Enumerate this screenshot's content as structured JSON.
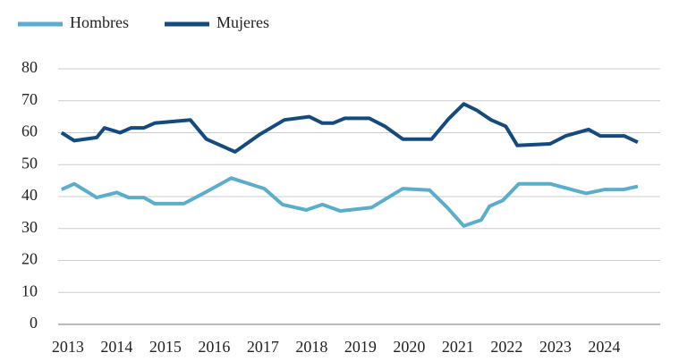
{
  "chart_data": {
    "type": "line",
    "series": [
      {
        "name": "Hombres",
        "color": "#5aaecb",
        "x": [
          2012.87,
          2013.13,
          2013.59,
          2014.0,
          2014.25,
          2014.56,
          2014.78,
          2015.38,
          2015.84,
          2016.35,
          2017.03,
          2017.4,
          2017.89,
          2018.22,
          2018.59,
          2019.23,
          2019.87,
          2020.42,
          2020.78,
          2021.12,
          2021.48,
          2021.65,
          2021.92,
          2022.25,
          2022.89,
          2023.63,
          2024.01,
          2024.4,
          2024.69
        ],
        "values": [
          42.2,
          44,
          39.7,
          41.3,
          39.7,
          39.7,
          37.8,
          37.8,
          41.5,
          45.8,
          42.5,
          37.5,
          35.8,
          37.5,
          35.5,
          36.6,
          42.5,
          42,
          36.6,
          30.8,
          32.7,
          37,
          38.8,
          44,
          44,
          41,
          42.2,
          42.2,
          43.2
        ]
      },
      {
        "name": "Mujeres",
        "color": "#154a7f",
        "x": [
          2012.87,
          2013.13,
          2013.59,
          2013.75,
          2014.07,
          2014.3,
          2014.56,
          2014.78,
          2015.51,
          2015.84,
          2016.43,
          2016.94,
          2017.44,
          2017.95,
          2018.22,
          2018.44,
          2018.68,
          2019.18,
          2019.5,
          2019.87,
          2020.46,
          2020.82,
          2021.12,
          2021.39,
          2021.68,
          2021.98,
          2022.22,
          2022.89,
          2023.21,
          2023.68,
          2023.92,
          2024.41,
          2024.69
        ],
        "values": [
          60,
          57.5,
          58.5,
          61.5,
          60,
          61.5,
          61.5,
          63,
          64,
          58,
          54,
          59.5,
          64,
          65,
          63,
          63,
          64.5,
          64.5,
          62,
          58,
          58,
          64.5,
          69,
          67,
          64,
          62,
          56,
          56.5,
          59,
          61,
          59,
          59,
          57
        ]
      }
    ],
    "xlim": [
      2012.8,
      2025.15
    ],
    "xticks": [
      2013,
      2014,
      2015,
      2016,
      2017,
      2018,
      2019,
      2020,
      2021,
      2022,
      2023,
      2024
    ],
    "ylim": [
      0,
      80
    ],
    "yticks": [
      0,
      10,
      20,
      30,
      40,
      50,
      60,
      70,
      80
    ],
    "grid": true,
    "legend": "top-left"
  }
}
